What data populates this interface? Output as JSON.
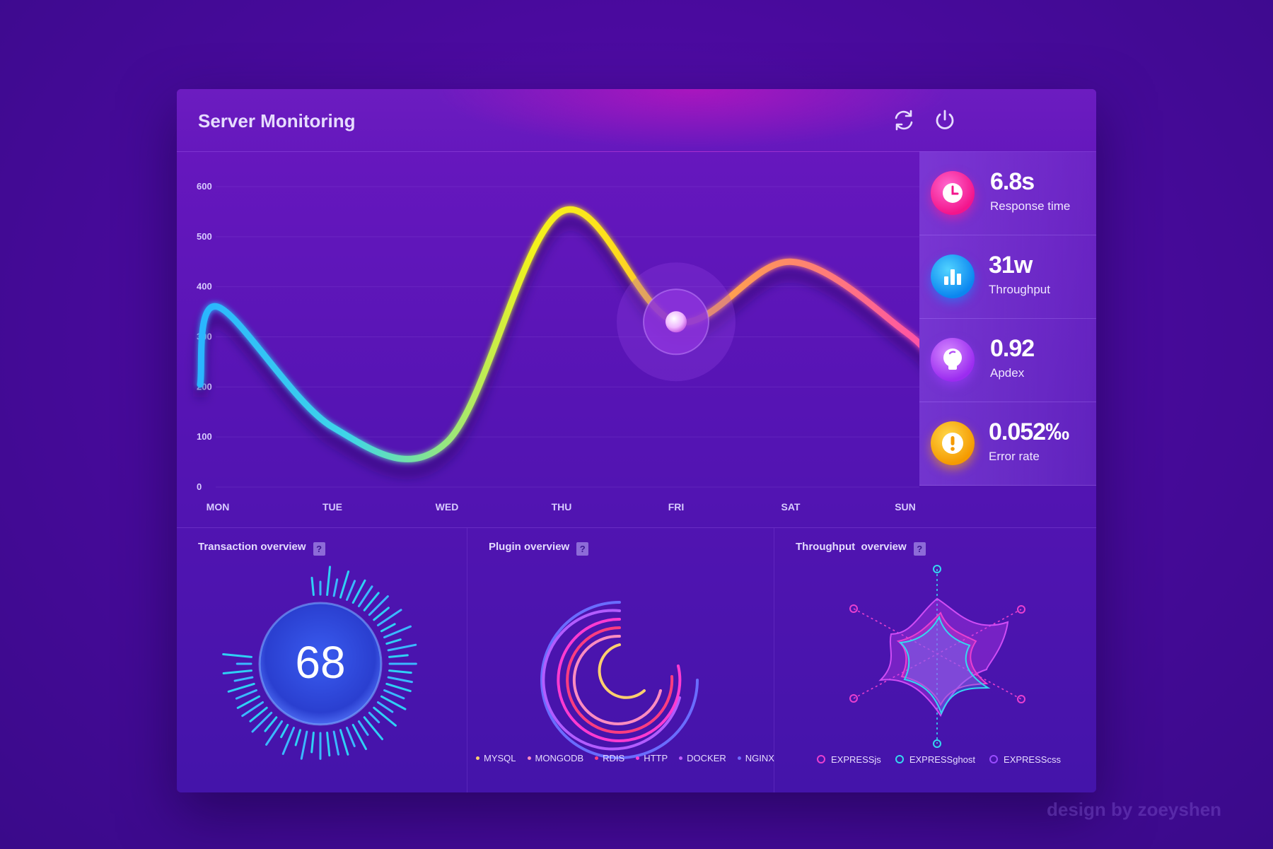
{
  "header": {
    "title": "Server Monitoring",
    "refresh_icon": "refresh-icon",
    "power_icon": "power-icon"
  },
  "stats": [
    {
      "value": "6.8s",
      "label": "Response time",
      "icon": "clock-icon",
      "color": "#ff2aa8"
    },
    {
      "value": "31w",
      "label": "Throughput",
      "icon": "bar-chart-icon",
      "color": "#1ea8ff"
    },
    {
      "value": "0.92",
      "label": "Apdex",
      "icon": "bulb-icon",
      "color": "#b94cff"
    },
    {
      "value": "0.052‰",
      "label": "Error rate",
      "icon": "alert-icon",
      "color": "#ffb100"
    }
  ],
  "chart_data": {
    "type": "line",
    "categories": [
      "MON",
      "TUE",
      "WED",
      "THU",
      "FRI",
      "SAT",
      "SUN"
    ],
    "series": [
      {
        "values": [
          360,
          120,
          90,
          550,
          330,
          450,
          310
        ]
      }
    ],
    "y_ticks": [
      "0",
      "100",
      "200",
      "300",
      "400",
      "500",
      "600"
    ],
    "ylim": [
      0,
      600
    ],
    "grid": true,
    "highlight_category": "FRI"
  },
  "transaction": {
    "title": "Transaction overview",
    "help": "?",
    "value": "68"
  },
  "plugin": {
    "title": "Plugin overview",
    "help": "?",
    "legend": [
      {
        "label": "MYSQL",
        "color": "#ffcf6e"
      },
      {
        "label": "MONGODB",
        "color": "#ff8cc0"
      },
      {
        "label": "RDIS",
        "color": "#ff3d80"
      },
      {
        "label": "HTTP",
        "color": "#ff3bd1"
      },
      {
        "label": "DOCKER",
        "color": "#c05cff"
      },
      {
        "label": "NGINX",
        "color": "#6d6cff"
      }
    ]
  },
  "throughput": {
    "title": "Throughput  overview",
    "help": "?",
    "legend": [
      {
        "label": "EXPRESSjs",
        "color": "#e93fd0"
      },
      {
        "label": "EXPRESSghost",
        "color": "#35d7f0"
      },
      {
        "label": "EXPRESScss",
        "color": "#9a4cff"
      }
    ]
  },
  "watermark": "design by zoeyshen"
}
